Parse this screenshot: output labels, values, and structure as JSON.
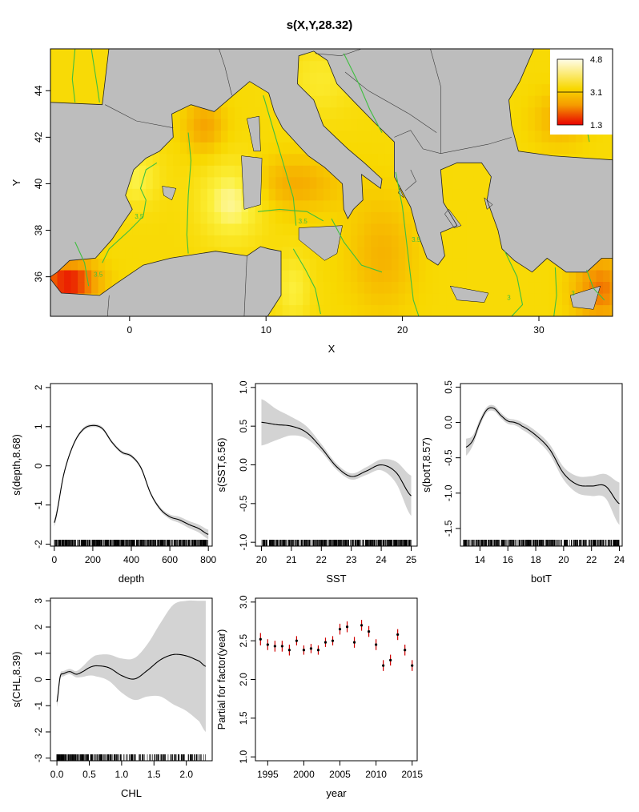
{
  "chart_data": [
    {
      "type": "heatmap",
      "title": "s(X,Y,28.32)",
      "xlabel": "X",
      "ylabel": "Y",
      "xlim": [
        -5.8,
        35.4
      ],
      "ylim": [
        34.3,
        45.8
      ],
      "xticks": [
        0,
        10,
        20,
        30
      ],
      "yticks": [
        36,
        38,
        40,
        42,
        44
      ],
      "legend": {
        "position": "top-right",
        "labels": [
          "4.8",
          "3.1",
          "1.3"
        ],
        "min": 1.3,
        "mid": 3.1,
        "max": 4.8
      },
      "contour_labels": [
        "3.5",
        "3.5",
        "3.5",
        "3.5",
        "3",
        "3"
      ],
      "colors": {
        "high": "#fffde8",
        "mid": "#f8d800",
        "low": "#e80000",
        "land": "#bdbdbd",
        "contour": "#3fbf3f"
      }
    },
    {
      "type": "line",
      "xlabel": "depth",
      "ylabel": "s(depth,8.68)",
      "xlim": [
        -20,
        820
      ],
      "ylim": [
        -2.05,
        2.1
      ],
      "xticks": [
        0,
        200,
        400,
        600,
        800
      ],
      "yticks": [
        -2,
        -1,
        0,
        1,
        2
      ],
      "x": [
        0,
        50,
        100,
        150,
        200,
        250,
        300,
        350,
        400,
        450,
        500,
        550,
        600,
        650,
        700,
        750,
        800
      ],
      "y": [
        -1.45,
        -0.2,
        0.55,
        0.93,
        1.03,
        0.95,
        0.6,
        0.35,
        0.25,
        -0.05,
        -0.7,
        -1.1,
        -1.3,
        -1.38,
        -1.5,
        -1.6,
        -1.75
      ],
      "se": [
        0.1,
        0.05,
        0.04,
        0.04,
        0.04,
        0.04,
        0.04,
        0.04,
        0.04,
        0.04,
        0.04,
        0.05,
        0.06,
        0.08,
        0.09,
        0.1,
        0.12
      ],
      "rug_range": [
        0,
        800
      ]
    },
    {
      "type": "line",
      "xlabel": "SST",
      "ylabel": "s(SST,6.56)",
      "xlim": [
        19.8,
        25.2
      ],
      "ylim": [
        -1.05,
        1.05
      ],
      "xticks": [
        20,
        21,
        22,
        23,
        24,
        25
      ],
      "yticks": [
        -1.0,
        -0.5,
        0.0,
        0.5,
        1.0
      ],
      "x": [
        20,
        20.5,
        21,
        21.5,
        22,
        22.5,
        23,
        23.5,
        24,
        24.5,
        25
      ],
      "y": [
        0.55,
        0.52,
        0.5,
        0.42,
        0.22,
        -0.02,
        -0.15,
        -0.08,
        0.0,
        -0.1,
        -0.4
      ],
      "se": [
        0.3,
        0.2,
        0.12,
        0.08,
        0.05,
        0.04,
        0.04,
        0.05,
        0.07,
        0.14,
        0.26
      ],
      "rug_range": [
        20,
        25
      ]
    },
    {
      "type": "line",
      "xlabel": "botT",
      "ylabel": "s(botT,8.57)",
      "xlim": [
        12.6,
        24.2
      ],
      "ylim": [
        -1.75,
        0.55
      ],
      "xticks": [
        14,
        16,
        18,
        20,
        22,
        24
      ],
      "yticks": [
        -1.5,
        -1.0,
        -0.5,
        0.0,
        0.5
      ],
      "x": [
        13,
        13.5,
        14,
        14.5,
        15,
        15.5,
        16,
        16.5,
        17,
        18,
        19,
        20,
        21,
        22,
        23,
        24
      ],
      "y": [
        -0.35,
        -0.25,
        0.0,
        0.18,
        0.2,
        0.1,
        0.02,
        0.0,
        -0.05,
        -0.18,
        -0.38,
        -0.72,
        -0.88,
        -0.9,
        -0.9,
        -1.15
      ],
      "se": [
        0.12,
        0.07,
        0.05,
        0.04,
        0.04,
        0.04,
        0.04,
        0.04,
        0.05,
        0.06,
        0.07,
        0.09,
        0.12,
        0.14,
        0.17,
        0.3
      ],
      "rug_range": [
        12.8,
        24
      ]
    },
    {
      "type": "line",
      "xlabel": "CHL",
      "ylabel": "s(CHL,8.39)",
      "xlim": [
        -0.1,
        2.4
      ],
      "ylim": [
        -3.1,
        3.1
      ],
      "xticks": [
        0.0,
        0.5,
        1.0,
        1.5,
        2.0
      ],
      "yticks": [
        -3,
        -2,
        -1,
        0,
        1,
        2,
        3
      ],
      "x": [
        0,
        0.05,
        0.1,
        0.2,
        0.3,
        0.4,
        0.5,
        0.6,
        0.8,
        1.0,
        1.2,
        1.4,
        1.6,
        1.8,
        2.0,
        2.2,
        2.3
      ],
      "y": [
        -0.85,
        0.1,
        0.22,
        0.3,
        0.2,
        0.3,
        0.45,
        0.52,
        0.45,
        0.15,
        0.02,
        0.35,
        0.75,
        0.95,
        0.9,
        0.7,
        0.5
      ],
      "se": [
        0.2,
        0.12,
        0.1,
        0.1,
        0.12,
        0.2,
        0.3,
        0.4,
        0.5,
        0.65,
        0.8,
        1.0,
        1.4,
        1.9,
        2.1,
        2.3,
        2.5
      ],
      "rug_range": [
        0,
        2.3
      ]
    },
    {
      "type": "scatter",
      "xlabel": "year",
      "ylabel": "Partial for factor(year)",
      "xlim": [
        1993.3,
        2015.7
      ],
      "ylim": [
        0.95,
        3.05
      ],
      "xticks": [
        1995,
        2000,
        2005,
        2010,
        2015
      ],
      "yticks": [
        1.0,
        1.5,
        2.0,
        2.5,
        3.0
      ],
      "x": [
        1994,
        1995,
        1996,
        1997,
        1998,
        1999,
        2000,
        2001,
        2002,
        2003,
        2004,
        2005,
        2006,
        2007,
        2008,
        2009,
        2010,
        2011,
        2012,
        2013,
        2014,
        2015
      ],
      "y": [
        2.52,
        2.45,
        2.43,
        2.43,
        2.38,
        2.5,
        2.38,
        2.4,
        2.38,
        2.48,
        2.5,
        2.65,
        2.68,
        2.48,
        2.7,
        2.62,
        2.45,
        2.18,
        2.25,
        2.58,
        2.38,
        2.18
      ],
      "err": [
        0.08,
        0.07,
        0.07,
        0.07,
        0.07,
        0.06,
        0.06,
        0.06,
        0.06,
        0.06,
        0.06,
        0.07,
        0.07,
        0.07,
        0.07,
        0.07,
        0.07,
        0.07,
        0.07,
        0.07,
        0.07,
        0.07
      ]
    }
  ]
}
